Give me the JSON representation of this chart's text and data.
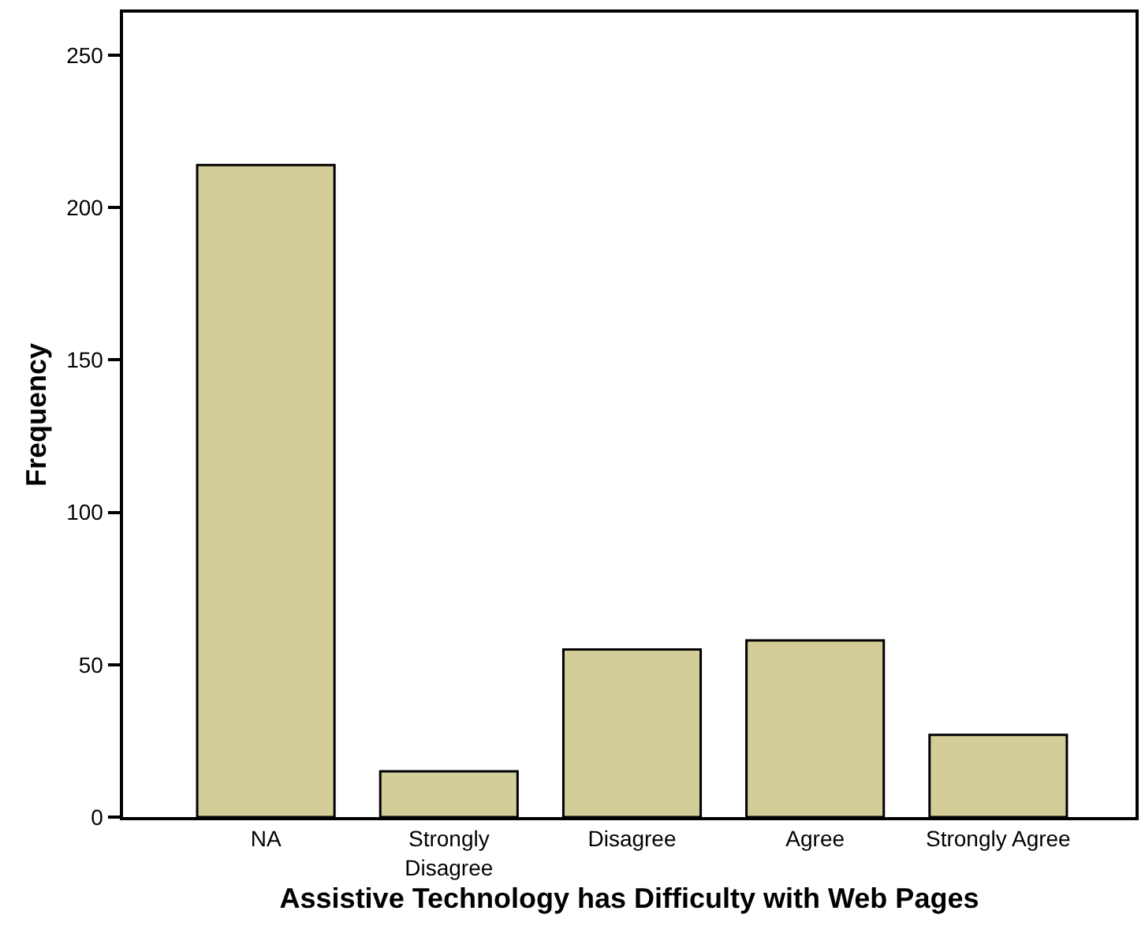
{
  "chart_data": {
    "type": "bar",
    "xlabel": "Assistive Technology has Difficulty with Web Pages",
    "ylabel": "Frequency",
    "categories": [
      "NA",
      "Strongly\nDisagree",
      "Disagree",
      "Agree",
      "Strongly Agree"
    ],
    "values": [
      214,
      15,
      55,
      58,
      27
    ],
    "color": "#d3cd99",
    "ylim": [
      0,
      264
    ],
    "yticks": [
      0,
      50,
      100,
      150,
      200,
      250
    ],
    "legend": false
  }
}
